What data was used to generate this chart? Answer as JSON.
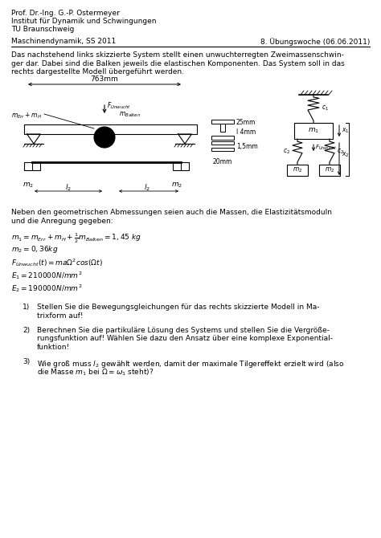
{
  "header_line1": "Prof. Dr.-Ing. G.-P. Ostermeyer",
  "header_line2": "Institut für Dynamik und Schwingungen",
  "header_line3": "TU Braunschweig",
  "header_left": "Maschinendynamik, SS 2011",
  "header_right": "8. Übungswoche (06.06.2011)",
  "intro_text": "Das nachstehend links skizzierte System stellt einen unwuchterregten Zweimassenschwin-\nger dar. Dabei sind die Balken jeweils die elastischen Komponenten. Das System soll in das\nrechts dargestellte Modell übergeführt werden.",
  "given_text": "Neben den geometrischen Abmessungen seien auch die Massen, die Elastizitätsmoduln\nund die Anregung gegeben:",
  "eq1": "$m_1 = m_{Err} + m_H + \\frac{1}{2}m_{Balken} = 1,45\\ kg$",
  "eq2": "$m_2 = 0,36kg$",
  "eq3": "$F_{Unwucht}(t) = ma\\Omega^2cos(\\Omega t)$",
  "eq4": "$E_1 = 210000N/mm^2$",
  "eq5": "$E_2 = 190000N/mm^2$",
  "q1_num": "1)",
  "q1_text": "Stellen Sie die Bewegungsgleichungen für das rechts skizzierte Modell in Ma-\ntrixform auf!",
  "q2_num": "2)",
  "q2_text": "Berechnen Sie die partikuläre Lösung des Systems und stellen Sie die Vergröße-\nrungsfunktion auf! Wählen Sie dazu den Ansatz über eine komplexe Exponential-\nfunktion!",
  "q3_num": "3)",
  "q3_text": "Wie groß muss $l_2$ gewählt werden, damit der maximale Tilgereffekt erzielt wird (also\ndie Masse $m_1$ bei $\\Omega=\\omega_1$ steht)?",
  "bg_color": "#ffffff",
  "text_color": "#000000",
  "fig_w": 4.74,
  "fig_h": 6.7,
  "dpi": 100
}
